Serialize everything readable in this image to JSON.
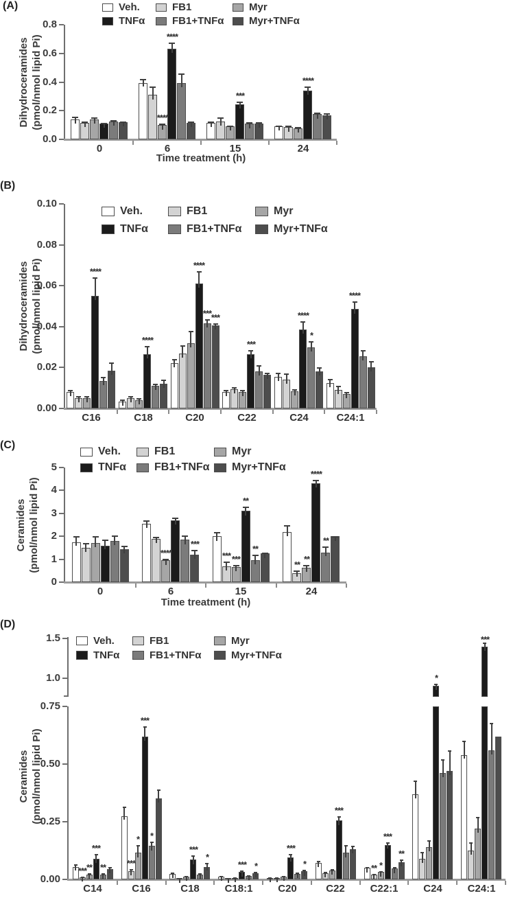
{
  "figure": {
    "background": "#ffffff",
    "bar_border_color": "#4c4c4c",
    "series": [
      {
        "key": "veh",
        "label": "Veh.",
        "color": "#ffffff"
      },
      {
        "key": "tnf",
        "label": "TNFα",
        "color": "#1b1b1b"
      },
      {
        "key": "fb1",
        "label": "FB1",
        "color": "#d3d3d3"
      },
      {
        "key": "fb1tnf",
        "label": "FB1+TNFα",
        "color": "#7b7b7b"
      },
      {
        "key": "myr",
        "label": "Myr",
        "color": "#a6a6a6"
      },
      {
        "key": "myrtnf",
        "label": "Myr+TNFα",
        "color": "#4d4d4d"
      }
    ],
    "bar_order": [
      "veh",
      "fb1",
      "myr",
      "tnf",
      "fb1tnf",
      "myrtnf"
    ],
    "legend_columns": [
      [
        "veh",
        "tnf"
      ],
      [
        "fb1",
        "fb1tnf"
      ],
      [
        "myr",
        "myrtnf"
      ]
    ]
  },
  "chart_data": [
    {
      "panel": "(A)",
      "type": "bar",
      "ylabel": [
        "Dihydroceramides",
        "(pmol/nmol lipid Pi)"
      ],
      "xlabel": "Time treatment (h)",
      "ylim": [
        0,
        0.8
      ],
      "yticks": [
        {
          "v": 0,
          "t": "0.0"
        },
        {
          "v": 0.2,
          "t": "0.2"
        },
        {
          "v": 0.4,
          "t": "0.4"
        },
        {
          "v": 0.6,
          "t": "0.6"
        },
        {
          "v": 0.8,
          "t": "0.8"
        }
      ],
      "categories": [
        "0",
        "6",
        "15",
        "24"
      ],
      "series": [
        {
          "key": "veh",
          "name": "Veh.",
          "values": [
            0.14,
            0.395,
            0.115,
            0.09
          ],
          "errors": [
            0.02,
            0.025,
            0.008,
            0.005
          ]
        },
        {
          "key": "fb1",
          "name": "FB1",
          "values": [
            0.115,
            0.31,
            0.125,
            0.085
          ],
          "errors": [
            0.008,
            0.06,
            0.03,
            0.012
          ]
        },
        {
          "key": "myr",
          "name": "Myr",
          "values": [
            0.14,
            0.1,
            0.09,
            0.078
          ],
          "errors": [
            0.015,
            0.012,
            0.006,
            0.01
          ]
        },
        {
          "key": "tnf",
          "name": "TNFα",
          "values": [
            0.11,
            0.63,
            0.245,
            0.34
          ],
          "errors": [
            0.005,
            0.045,
            0.02,
            0.03
          ]
        },
        {
          "key": "fb1tnf",
          "name": "FB1+TNFα",
          "values": [
            0.125,
            0.395,
            0.11,
            0.175
          ],
          "errors": [
            0.008,
            0.065,
            0.012,
            0.012
          ]
        },
        {
          "key": "myrtnf",
          "name": "Myr+TNFα",
          "values": [
            0.12,
            0.115,
            0.11,
            0.168
          ],
          "errors": [
            0.005,
            0.01,
            0.008,
            0.012
          ]
        }
      ],
      "stars": [
        {},
        {
          "myr": "****",
          "tnf": "****"
        },
        {
          "tnf": "***"
        },
        {
          "tnf": "****"
        }
      ]
    },
    {
      "panel": "(B)",
      "type": "bar",
      "ylabel": [
        "Dihydroceramides",
        "(pmol/nmol lipid Pi)"
      ],
      "xlabel": "",
      "ylim": [
        0,
        0.1
      ],
      "yticks": [
        {
          "v": 0,
          "t": "0.00"
        },
        {
          "v": 0.02,
          "t": "0.02"
        },
        {
          "v": 0.04,
          "t": "0.04"
        },
        {
          "v": 0.06,
          "t": "0.06"
        },
        {
          "v": 0.08,
          "t": "0.08"
        },
        {
          "v": 0.1,
          "t": "0.10"
        }
      ],
      "categories": [
        "C16",
        "C18",
        "C20",
        "C22",
        "C24",
        "C24:1"
      ],
      "series": [
        {
          "key": "veh",
          "name": "Veh.",
          "values": [
            0.008,
            0.0035,
            0.022,
            0.008,
            0.0155,
            0.0125
          ],
          "errors": [
            0.001,
            0.001,
            0.002,
            0.001,
            0.002,
            0.002
          ]
        },
        {
          "key": "fb1",
          "name": "FB1",
          "values": [
            0.005,
            0.005,
            0.027,
            0.0095,
            0.014,
            0.009
          ],
          "errors": [
            0.001,
            0.001,
            0.004,
            0.001,
            0.003,
            0.002
          ]
        },
        {
          "key": "myr",
          "name": "Myr",
          "values": [
            0.005,
            0.004,
            0.032,
            0.008,
            0.0085,
            0.007
          ],
          "errors": [
            0.001,
            0.001,
            0.006,
            0.001,
            0.001,
            0.001
          ]
        },
        {
          "key": "tnf",
          "name": "TNFα",
          "values": [
            0.055,
            0.0265,
            0.061,
            0.0265,
            0.0385,
            0.0485
          ],
          "errors": [
            0.009,
            0.004,
            0.006,
            0.002,
            0.004,
            0.004
          ]
        },
        {
          "key": "fb1tnf",
          "name": "FB1+TNFα",
          "values": [
            0.0135,
            0.011,
            0.0415,
            0.018,
            0.03,
            0.0255
          ],
          "errors": [
            0.002,
            0.001,
            0.002,
            0.003,
            0.003,
            0.003
          ]
        },
        {
          "key": "myrtnf",
          "name": "Myr+TNFα",
          "values": [
            0.0185,
            0.012,
            0.0405,
            0.0165,
            0.018,
            0.02
          ],
          "errors": [
            0.004,
            0.002,
            0.001,
            0.001,
            0.002,
            0.003
          ]
        }
      ],
      "stars": [
        {
          "tnf": "****"
        },
        {
          "tnf": "****"
        },
        {
          "tnf": "****",
          "fb1tnf": "***",
          "myrtnf": "***"
        },
        {
          "tnf": "***"
        },
        {
          "tnf": "****",
          "fb1tnf": "*"
        },
        {
          "tnf": "****"
        }
      ]
    },
    {
      "panel": "(C)",
      "type": "bar",
      "ylabel": [
        "Ceramides",
        "(pmol/nmol lipid Pi)"
      ],
      "xlabel": "Time treatment (h)",
      "ylim": [
        0,
        5
      ],
      "yticks": [
        {
          "v": 0,
          "t": "0"
        },
        {
          "v": 1,
          "t": "1"
        },
        {
          "v": 2,
          "t": "2"
        },
        {
          "v": 3,
          "t": "3"
        },
        {
          "v": 4,
          "t": "4"
        },
        {
          "v": 5,
          "t": "5"
        }
      ],
      "categories": [
        "0",
        "6",
        "15",
        "24"
      ],
      "series": [
        {
          "key": "veh",
          "name": "Veh.",
          "values": [
            1.75,
            2.55,
            2.0,
            2.2
          ],
          "errors": [
            0.25,
            0.15,
            0.2,
            0.3
          ]
        },
        {
          "key": "fb1",
          "name": "FB1",
          "values": [
            1.5,
            1.9,
            0.7,
            0.4
          ],
          "errors": [
            0.2,
            0.08,
            0.2,
            0.1
          ]
        },
        {
          "key": "myr",
          "name": "Myr",
          "values": [
            1.7,
            0.95,
            0.65,
            0.62
          ],
          "errors": [
            0.3,
            0.08,
            0.1,
            0.12
          ]
        },
        {
          "key": "tnf",
          "name": "TNFα",
          "values": [
            1.6,
            2.7,
            3.1,
            4.3
          ],
          "errors": [
            0.25,
            0.12,
            0.2,
            0.15
          ]
        },
        {
          "key": "fb1tnf",
          "name": "FB1+TNFα",
          "values": [
            1.8,
            1.85,
            0.95,
            1.3
          ],
          "errors": [
            0.25,
            0.2,
            0.25,
            0.25
          ]
        },
        {
          "key": "myrtnf",
          "name": "Myr+TNFα",
          "values": [
            1.45,
            1.2,
            1.25,
            2.0
          ],
          "errors": [
            0.15,
            0.2,
            0.05,
            0.02
          ]
        }
      ],
      "stars": [
        {},
        {
          "myr": "****",
          "myrtnf": "***"
        },
        {
          "fb1": "***",
          "myr": "***",
          "tnf": "**",
          "fb1tnf": "**"
        },
        {
          "fb1": "**",
          "myr": "**",
          "tnf": "****",
          "fb1tnf": "**"
        }
      ]
    },
    {
      "panel": "(D)",
      "type": "bar",
      "ylabel": [
        "Ceramides",
        "(pmol/nmol lipid Pi)"
      ],
      "xlabel": "",
      "ylim": [
        0,
        1.5
      ],
      "axis_break": {
        "lower_max": 0.75,
        "upper_min": 0.76,
        "upper_max": 1.52,
        "upper_ticks": [
          {
            "v": 1.5,
            "t": "1.5"
          },
          {
            "v": 1.0,
            "t": "1.0"
          }
        ]
      },
      "yticks": [
        {
          "v": 0,
          "t": "0.00"
        },
        {
          "v": 0.25,
          "t": "0.25"
        },
        {
          "v": 0.5,
          "t": "0.50"
        },
        {
          "v": 0.75,
          "t": "0.75"
        }
      ],
      "categories": [
        "C14",
        "C16",
        "C18",
        "C18:1",
        "C20",
        "C22",
        "C22:1",
        "C24",
        "C24:1"
      ],
      "series": [
        {
          "key": "veh",
          "name": "Veh.",
          "values": [
            0.055,
            0.275,
            0.025,
            0.012,
            0.006,
            0.07,
            0.05,
            0.37,
            0.54
          ],
          "errors": [
            0.01,
            0.04,
            0.005,
            0.003,
            0.002,
            0.01,
            0.005,
            0.06,
            0.06
          ]
        },
        {
          "key": "fb1",
          "name": "FB1",
          "values": [
            0.008,
            0.035,
            0.005,
            0.005,
            0.006,
            0.028,
            0.02,
            0.09,
            0.125
          ],
          "errors": [
            0.004,
            0.01,
            0.002,
            0.002,
            0.002,
            0.005,
            0.005,
            0.03,
            0.035
          ]
        },
        {
          "key": "myr",
          "name": "Myr",
          "values": [
            0.022,
            0.115,
            0.012,
            0.006,
            0.012,
            0.038,
            0.032,
            0.14,
            0.22
          ],
          "errors": [
            0.005,
            0.035,
            0.003,
            0.002,
            0.003,
            0.006,
            0.005,
            0.03,
            0.05
          ]
        },
        {
          "key": "tnf",
          "name": "TNFα",
          "values": [
            0.09,
            0.62,
            0.085,
            0.032,
            0.095,
            0.255,
            0.15,
            0.9,
            1.4
          ],
          "errors": [
            0.02,
            0.045,
            0.02,
            0.008,
            0.015,
            0.02,
            0.01,
            0.03,
            0.05
          ]
        },
        {
          "key": "fb1tnf",
          "name": "FB1+TNFα",
          "values": [
            0.022,
            0.145,
            0.022,
            0.014,
            0.025,
            0.115,
            0.047,
            0.46,
            0.56
          ],
          "errors": [
            0.005,
            0.02,
            0.005,
            0.004,
            0.005,
            0.035,
            0.008,
            0.06,
            0.12
          ]
        },
        {
          "key": "myrtnf",
          "name": "Myr+TNFα",
          "values": [
            0.045,
            0.35,
            0.055,
            0.026,
            0.035,
            0.13,
            0.075,
            0.47,
            0.62
          ],
          "errors": [
            0.008,
            0.04,
            0.015,
            0.006,
            0.008,
            0.015,
            0.012,
            0.09,
            0
          ]
        }
      ],
      "stars": [
        {
          "fb1": "***",
          "myr": "**",
          "tnf": "***",
          "fb1tnf": "**"
        },
        {
          "fb1": "***",
          "myr": "*",
          "tnf": "***",
          "fb1tnf": "*"
        },
        {
          "tnf": "***",
          "myrtnf": "*"
        },
        {
          "tnf": "***",
          "myrtnf": "*"
        },
        {
          "tnf": "***",
          "myrtnf": "*"
        },
        {
          "tnf": "***"
        },
        {
          "fb1": "**",
          "myr": "*",
          "tnf": "***",
          "myrtnf": "**"
        },
        {
          "tnf": "*"
        },
        {
          "tnf": "***"
        }
      ]
    }
  ]
}
